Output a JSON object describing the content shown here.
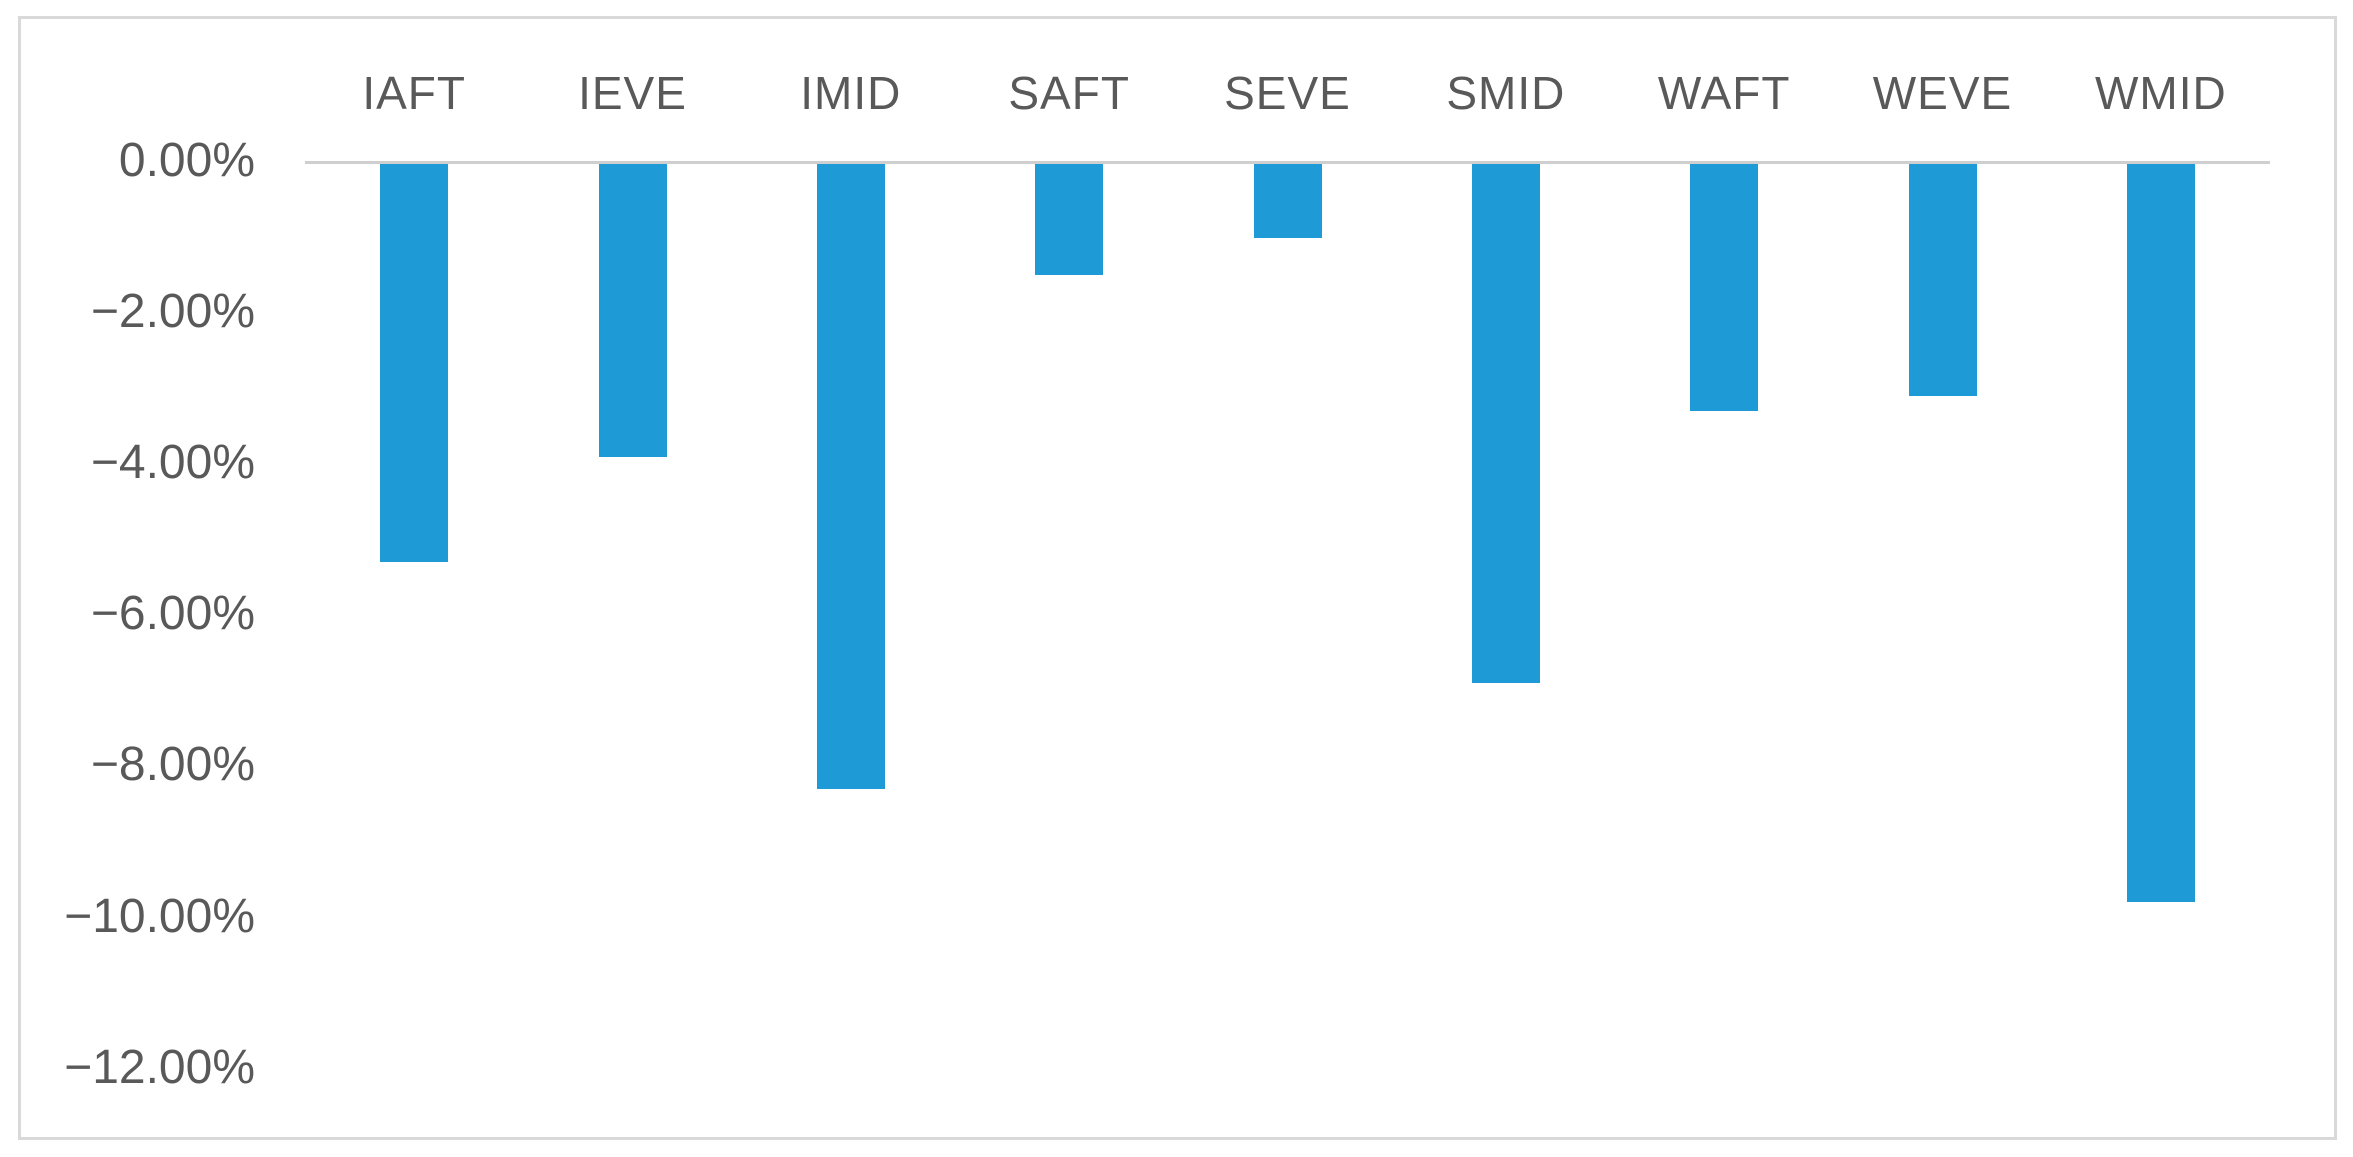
{
  "chart_data": {
    "type": "bar",
    "categories": [
      "IAFT",
      "IEVE",
      "IMID",
      "SAFT",
      "SEVE",
      "SMID",
      "WAFT",
      "WEVE",
      "WMID"
    ],
    "values": [
      -5.3,
      -3.9,
      -8.3,
      -1.5,
      -1.0,
      -6.9,
      -3.3,
      -3.1,
      -9.8
    ],
    "series_name": "",
    "title": "",
    "xlabel": "",
    "ylabel": "",
    "ylim": [
      -12,
      0
    ],
    "ytick_step": 2,
    "ytick_labels": [
      "0.00%",
      "−2.00%",
      "−4.00%",
      "−6.00%",
      "−8.00%",
      "−10.00%",
      "−12.00%"
    ],
    "grid": false,
    "legend": "none",
    "category_label_position": "above-plot",
    "bar_color": "#1E9AD6",
    "axis_line_color": "#CFCFCF",
    "frame_border_color": "#D9D9D9",
    "label_color": "#595959",
    "background_color": "#FFFFFF"
  }
}
